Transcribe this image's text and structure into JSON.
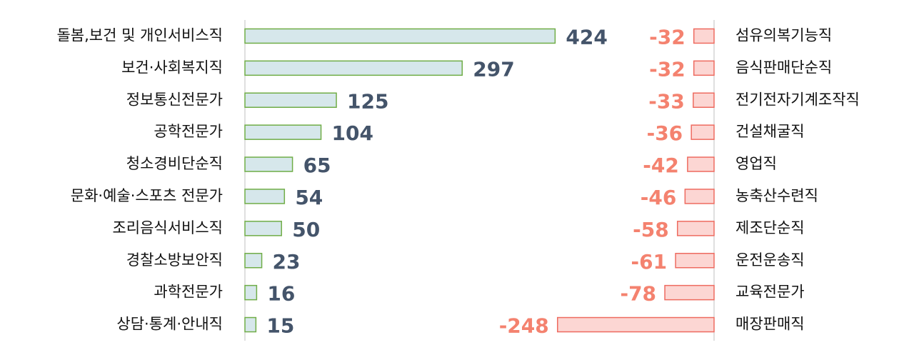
{
  "chart_data": [
    {
      "type": "bar",
      "categories": [
        "돌봄,보건 및 개인서비스직",
        "보건·사회복지직",
        "정보통신전문가",
        "공학전문가",
        "청소경비단순직",
        "문화·예술·스포츠 전문가",
        "조리음식서비스직",
        "경찰소방보안직",
        "과학전문가",
        "상담·통계·안내직"
      ],
      "values": [
        424,
        297,
        125,
        104,
        65,
        54,
        50,
        23,
        16,
        15
      ],
      "color": "#d6e7eb",
      "edge_color": "#70ad47",
      "label_color": "#44546a",
      "xlim": [
        0,
        450
      ]
    },
    {
      "type": "bar",
      "categories": [
        "섬유의복기능직",
        "음식판매단순직",
        "전기전자기계조작직",
        "건설채굴직",
        "영업직",
        "농축산수련직",
        "제조단순직",
        "운전운송직",
        "교육전문가",
        "매장판매직"
      ],
      "values": [
        -32,
        -32,
        -33,
        -36,
        -42,
        -46,
        -58,
        -61,
        -78,
        -248
      ],
      "color": "#fcd6d3",
      "edge_color": "#ee6b60",
      "label_color": "#f4826f",
      "xlim": [
        -250,
        0
      ]
    }
  ]
}
